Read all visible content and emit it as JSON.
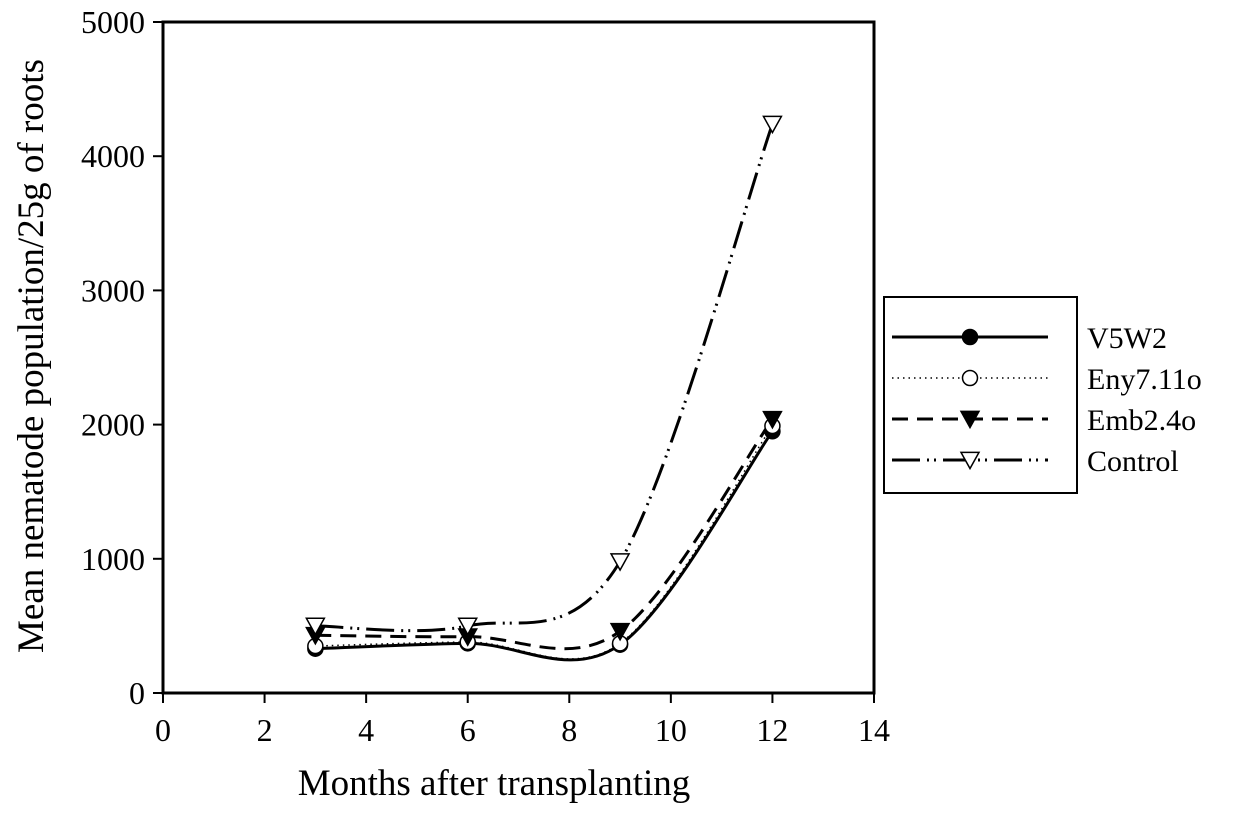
{
  "chart_data": {
    "type": "line",
    "title": "",
    "xlabel": "Months after transplanting",
    "ylabel": "Mean nematode population/25g of roots",
    "xlim": [
      0,
      14
    ],
    "ylim": [
      0,
      5000
    ],
    "xticks": [
      0,
      2,
      4,
      6,
      8,
      10,
      12,
      14
    ],
    "yticks": [
      0,
      1000,
      2000,
      3000,
      4000,
      5000
    ],
    "xtick_labels": [
      "0",
      "2",
      "4",
      "6",
      "8",
      "10",
      "12",
      "14"
    ],
    "ytick_labels": [
      "0",
      "1000",
      "2000",
      "3000",
      "4000",
      "5000"
    ],
    "grid": false,
    "legend_position": "right",
    "x": [
      3,
      6,
      9,
      12
    ],
    "series": [
      {
        "name": "V5W2",
        "values": [
          330,
          370,
          360,
          1950
        ],
        "marker": "filled-circle",
        "line_style": "solid",
        "color": "#000000"
      },
      {
        "name": "Eny7.11o",
        "values": [
          350,
          380,
          370,
          1990
        ],
        "marker": "open-circle",
        "line_style": "dotted",
        "color": "#000000"
      },
      {
        "name": "Emb2.4o",
        "values": [
          430,
          420,
          460,
          2040
        ],
        "marker": "filled-triangle-down",
        "line_style": "dashed",
        "color": "#000000"
      },
      {
        "name": "Control",
        "values": [
          500,
          500,
          980,
          4240
        ],
        "marker": "open-triangle-down",
        "line_style": "dash-dot-dot",
        "color": "#000000"
      }
    ]
  }
}
